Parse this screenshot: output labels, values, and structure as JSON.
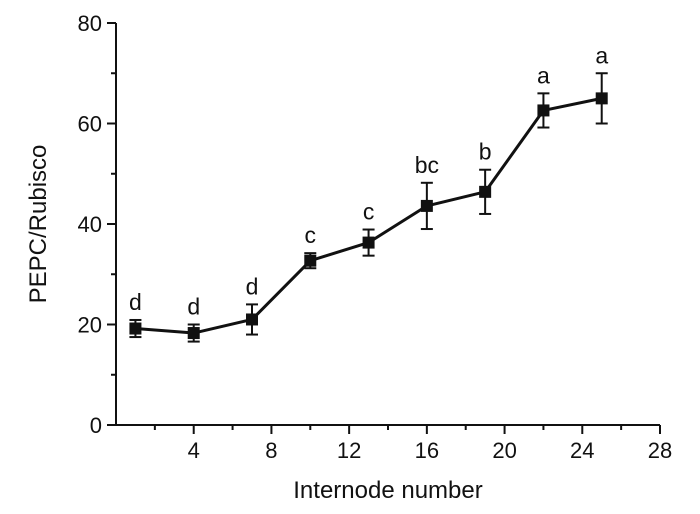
{
  "chart_data": {
    "type": "line",
    "title": "",
    "xlabel": "Internode number",
    "ylabel": "PEPC/Rubisco",
    "xlim": [
      0,
      28
    ],
    "ylim": [
      0,
      80
    ],
    "xticks": [
      4,
      8,
      12,
      16,
      20,
      24,
      28
    ],
    "yticks": [
      0,
      20,
      40,
      60,
      80
    ],
    "xtick_labels": [
      "4",
      "8",
      "12",
      "16",
      "20",
      "24",
      "28"
    ],
    "ytick_labels": [
      "0",
      "20",
      "40",
      "60",
      "80"
    ],
    "grid": false,
    "legend": "none",
    "series": [
      {
        "x": [
          1,
          4,
          7,
          10,
          13,
          16,
          19,
          22,
          25
        ],
        "y": [
          19.2,
          18.3,
          21.0,
          32.7,
          36.3,
          43.6,
          46.4,
          62.6,
          65.0
        ],
        "error": [
          1.7,
          1.7,
          3.0,
          1.5,
          2.6,
          4.6,
          4.4,
          3.4,
          5.0
        ],
        "significance": [
          "d",
          "d",
          "d",
          "c",
          "c",
          "bc",
          "b",
          "a",
          "a"
        ]
      }
    ],
    "colors": {
      "line": "#111111",
      "marker": "#111111"
    }
  }
}
